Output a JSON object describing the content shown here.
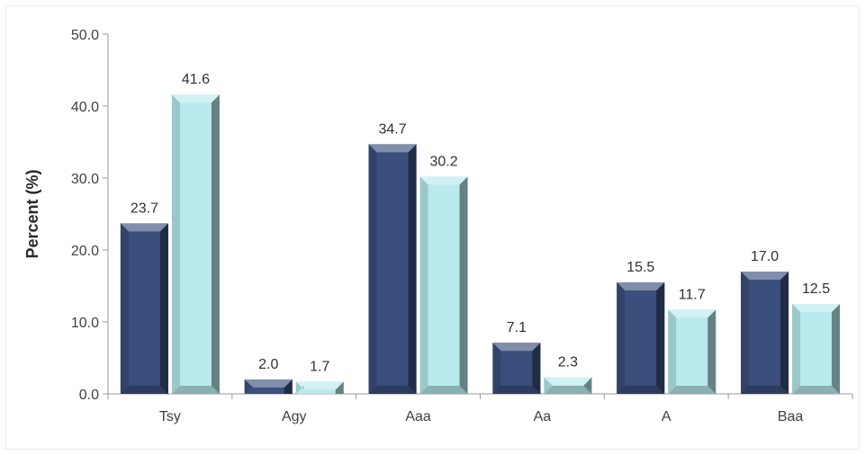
{
  "chart_data": {
    "type": "bar",
    "title": "",
    "xlabel": "",
    "ylabel": "Percent (%)",
    "categories": [
      "Tsy",
      "Agy",
      "Aaa",
      "Aa",
      "A",
      "Baa"
    ],
    "series": [
      {
        "values": [
          23.7,
          2.0,
          34.7,
          7.1,
          15.5,
          17.0
        ],
        "color": "#3b4f7d"
      },
      {
        "values": [
          41.6,
          1.7,
          30.2,
          2.3,
          11.7,
          12.5
        ],
        "color": "#b8eaee"
      }
    ],
    "ylim": [
      0,
      50
    ],
    "yticks": [
      "0.0",
      "10.0",
      "20.0",
      "30.0",
      "40.0",
      "50.0"
    ],
    "data_labels": [
      [
        "23.7",
        "2.0",
        "34.7",
        "7.1",
        "15.5",
        "17.0"
      ],
      [
        "41.6",
        "1.7",
        "30.2",
        "2.3",
        "11.7",
        "12.5"
      ]
    ],
    "grid": false,
    "legend": "none"
  }
}
